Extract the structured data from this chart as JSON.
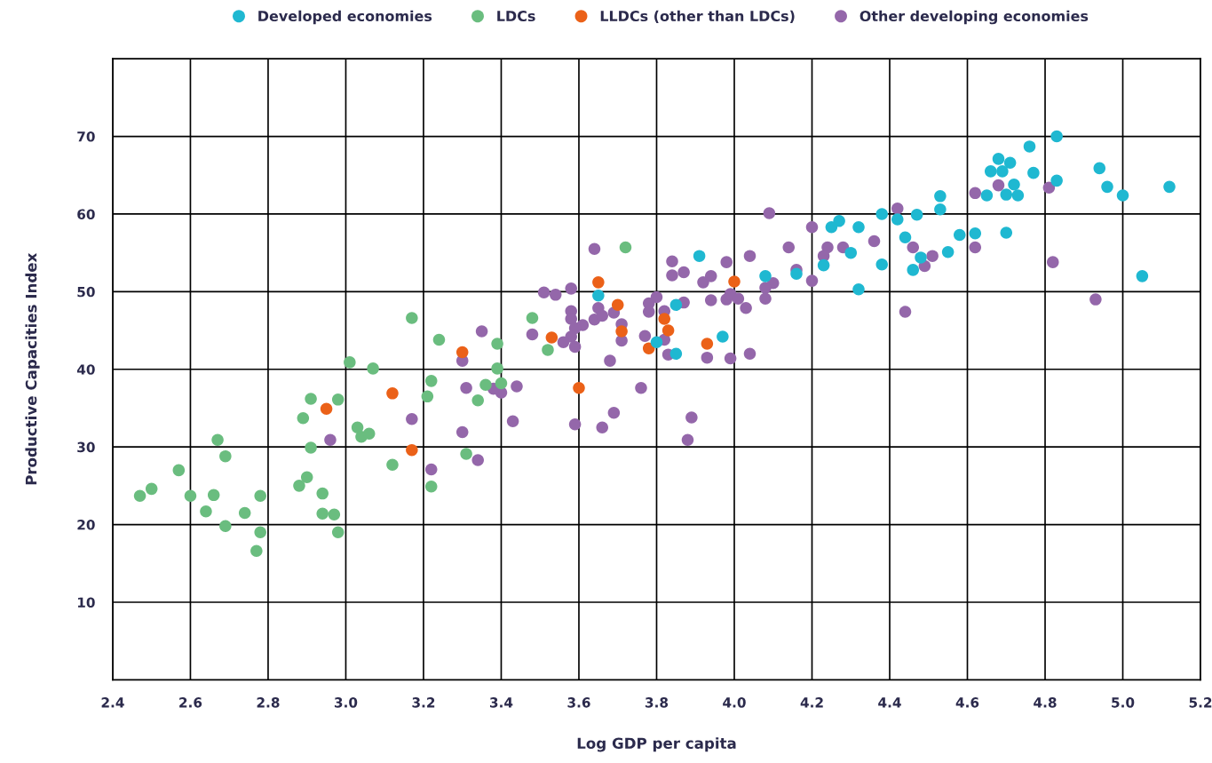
{
  "chart_data": {
    "type": "scatter",
    "xlabel": "Log GDP per capita",
    "ylabel": "Productive Capacities Index",
    "xlim": [
      2.4,
      5.2
    ],
    "xticks": [
      2.4,
      2.6,
      2.8,
      {
        "value": 3,
        "label": "3.0"
      },
      3.2,
      3.4,
      3.6,
      3.8,
      {
        "value": 4,
        "label": "4.0"
      },
      4.2,
      4.4,
      4.6,
      4.8,
      {
        "value": 5,
        "label": "5.0"
      },
      5.2
    ],
    "ylim": [
      0,
      80
    ],
    "yticks": [
      10,
      20,
      30,
      40,
      50,
      60,
      70
    ],
    "grid": true,
    "legend": "top",
    "marker": "circle",
    "series": [
      {
        "name": "Developed economies",
        "color": "#1fb8d1",
        "x": [
          4.83,
          4.76,
          4.68,
          4.71,
          4.66,
          4.69,
          4.77,
          4.94,
          4.83,
          4.96,
          4.72,
          5.0,
          5.12,
          4.65,
          4.7,
          4.73,
          4.53,
          4.53,
          4.47,
          4.38,
          4.42,
          4.32,
          4.27,
          4.25,
          4.58,
          4.62,
          4.7,
          4.44,
          4.55,
          4.3,
          4.48,
          4.38,
          4.23,
          4.46,
          4.16,
          5.05,
          4.08,
          4.32,
          3.91,
          3.65,
          3.85,
          3.97,
          3.8,
          3.85
        ],
        "values": [
          70.0,
          68.7,
          67.1,
          66.6,
          65.5,
          65.5,
          65.3,
          65.9,
          64.3,
          63.5,
          63.8,
          62.4,
          63.5,
          62.4,
          62.5,
          62.4,
          62.3,
          60.6,
          59.9,
          60.0,
          59.3,
          58.3,
          59.1,
          58.3,
          57.3,
          57.5,
          57.6,
          57.0,
          55.1,
          55.0,
          54.4,
          53.5,
          53.4,
          52.8,
          52.3,
          52.0,
          52.0,
          50.3,
          54.6,
          49.5,
          48.3,
          44.2,
          43.5,
          42.0
        ]
      },
      {
        "name": "LDCs",
        "color": "#6abd7f",
        "x": [
          3.72,
          3.48,
          3.52,
          3.39,
          3.39,
          3.4,
          3.36,
          3.34,
          3.17,
          3.24,
          3.01,
          3.07,
          3.22,
          3.21,
          3.31,
          3.12,
          3.22,
          2.91,
          2.98,
          2.89,
          3.03,
          3.04,
          3.06,
          2.91,
          2.9,
          2.88,
          2.94,
          2.94,
          2.97,
          2.98,
          2.67,
          2.69,
          2.57,
          2.5,
          2.47,
          2.6,
          2.66,
          2.64,
          2.74,
          2.78,
          2.69,
          2.78,
          2.77
        ],
        "values": [
          55.7,
          46.6,
          42.5,
          43.3,
          40.1,
          38.2,
          38.0,
          36.0,
          46.6,
          43.8,
          40.9,
          40.1,
          38.5,
          36.5,
          29.1,
          27.7,
          24.9,
          36.2,
          36.1,
          33.7,
          32.5,
          31.3,
          31.7,
          29.9,
          26.1,
          25.0,
          24.0,
          21.4,
          21.3,
          19.0,
          30.9,
          28.8,
          27.0,
          24.6,
          23.7,
          23.7,
          23.8,
          21.7,
          21.5,
          23.7,
          19.8,
          19.0,
          16.6
        ]
      },
      {
        "name": "LLDCs (other than LDCs)",
        "color": "#eb6118",
        "x": [
          3.3,
          3.12,
          2.95,
          3.17,
          3.53,
          3.6,
          3.65,
          3.7,
          3.71,
          3.82,
          3.83,
          3.78,
          3.93,
          4.0
        ],
        "values": [
          42.2,
          36.9,
          34.9,
          29.6,
          44.1,
          37.6,
          51.2,
          48.3,
          44.9,
          46.5,
          45.0,
          42.7,
          43.3,
          51.3
        ]
      },
      {
        "name": "Other developing economies",
        "color": "#9467aa",
        "x": [
          3.64,
          3.84,
          3.98,
          3.84,
          3.87,
          3.92,
          3.94,
          3.51,
          3.54,
          3.58,
          3.58,
          3.58,
          3.61,
          3.64,
          3.65,
          3.66,
          3.69,
          3.71,
          3.71,
          3.59,
          3.58,
          3.56,
          3.59,
          3.68,
          3.48,
          3.35,
          3.78,
          3.8,
          3.78,
          3.82,
          3.87,
          3.77,
          3.82,
          3.83,
          3.93,
          3.99,
          4.04,
          3.94,
          3.98,
          3.99,
          4.01,
          4.03,
          4.04,
          3.76,
          3.44,
          3.4,
          3.38,
          3.43,
          3.59,
          3.69,
          3.66,
          3.89,
          3.88,
          3.3,
          3.31,
          3.17,
          3.3,
          3.34,
          3.22,
          2.96,
          4.09,
          4.2,
          4.42,
          4.62,
          4.68,
          4.81,
          4.14,
          4.24,
          4.23,
          4.28,
          4.36,
          4.46,
          4.51,
          4.49,
          4.62,
          4.82,
          4.16,
          4.1,
          4.08,
          4.08,
          4.2,
          4.93,
          4.44
        ],
        "values": [
          55.5,
          53.9,
          53.8,
          52.1,
          52.5,
          51.2,
          52.0,
          49.9,
          49.6,
          50.4,
          47.5,
          46.5,
          45.7,
          46.4,
          47.9,
          46.9,
          47.3,
          45.8,
          43.7,
          45.3,
          44.2,
          43.5,
          42.9,
          41.1,
          44.5,
          44.9,
          48.5,
          49.3,
          47.4,
          47.5,
          48.6,
          44.3,
          43.8,
          41.9,
          41.5,
          41.4,
          42.0,
          48.9,
          49.0,
          49.7,
          49.1,
          47.9,
          54.6,
          37.6,
          37.8,
          37.0,
          37.5,
          33.3,
          32.9,
          34.4,
          32.5,
          33.8,
          30.9,
          41.1,
          37.6,
          33.6,
          31.9,
          28.3,
          27.1,
          30.9,
          60.1,
          58.3,
          60.7,
          62.7,
          63.7,
          63.4,
          55.7,
          55.7,
          54.6,
          55.7,
          56.5,
          55.7,
          54.6,
          53.3,
          55.7,
          53.8,
          52.8,
          51.1,
          50.5,
          49.1,
          51.4,
          49.0,
          47.4
        ]
      }
    ]
  }
}
